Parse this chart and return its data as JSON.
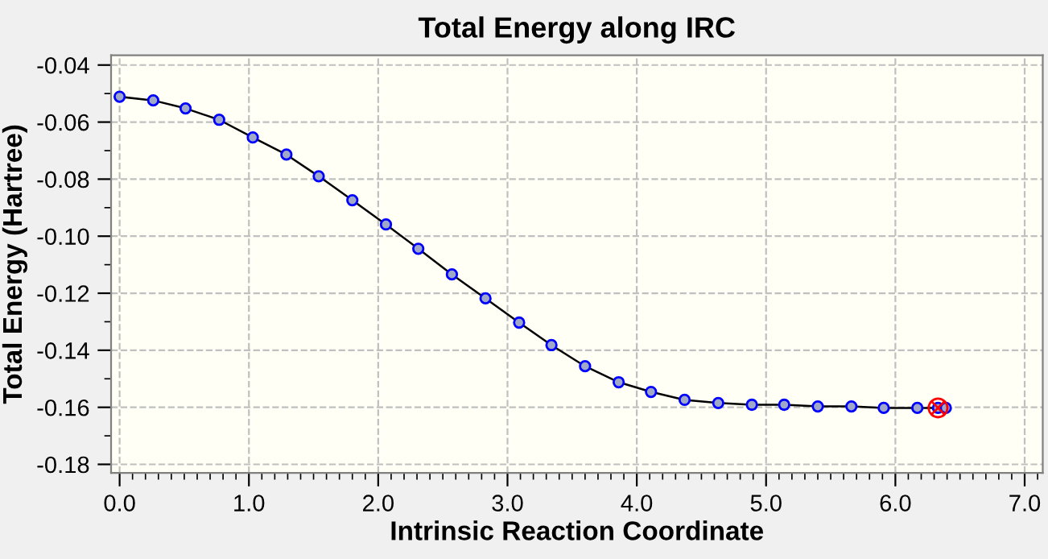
{
  "chart_data": {
    "type": "line",
    "title": "Total Energy along IRC",
    "xlabel": "Intrinsic Reaction Coordinate",
    "ylabel": "Total Energy (Hartree)",
    "series": [
      {
        "color": "#000000",
        "marker": "circle",
        "x": [
          0,
          0.26,
          0.51,
          0.77,
          1.03,
          1.29,
          1.54,
          1.8,
          2.06,
          2.31,
          2.57,
          2.83,
          3.09,
          3.34,
          3.6,
          3.86,
          4.11,
          4.37,
          4.63,
          4.89,
          5.14,
          5.4,
          5.66,
          5.91,
          6.17,
          6.33,
          6.39
        ],
        "values": [
          -0.0511,
          -0.0524,
          -0.0552,
          -0.0592,
          -0.0654,
          -0.0714,
          -0.079,
          -0.0874,
          -0.0959,
          -0.1044,
          -0.1134,
          -0.1218,
          -0.1303,
          -0.1382,
          -0.1456,
          -0.1512,
          -0.1546,
          -0.1574,
          -0.1585,
          -0.1591,
          -0.1591,
          -0.1597,
          -0.1597,
          -0.1602,
          -0.1602,
          -0.1602,
          -0.1602
        ]
      },
      {
        "type": "scatter",
        "color": "#ff0000",
        "marker": "cross",
        "x": [
          6.33
        ],
        "values": [
          -0.1602
        ]
      }
    ],
    "xlim": [
      -0.066,
      7.14
    ],
    "ylim": [
      -0.183,
      -0.0366
    ],
    "xticks": [
      {
        "value": 0,
        "label": "0.0"
      },
      {
        "value": 1,
        "label": "1.0"
      },
      {
        "value": 2,
        "label": "2.0"
      },
      {
        "value": 3,
        "label": "3.0"
      },
      {
        "value": 4,
        "label": "4.0"
      },
      {
        "value": 5,
        "label": "5.0"
      },
      {
        "value": 6,
        "label": "6.0"
      },
      {
        "value": 7,
        "label": "7.0"
      }
    ],
    "yticks": [
      {
        "value": -0.04,
        "label": "-0.04"
      },
      {
        "value": -0.06,
        "label": "-0.06"
      },
      {
        "value": -0.08,
        "label": "-0.08"
      },
      {
        "value": -0.1,
        "label": "-0.10"
      },
      {
        "value": -0.12,
        "label": "-0.12"
      },
      {
        "value": -0.14,
        "label": "-0.14"
      },
      {
        "value": -0.16,
        "label": "-0.16"
      },
      {
        "value": -0.18,
        "label": "-0.18"
      }
    ],
    "grid": true
  }
}
